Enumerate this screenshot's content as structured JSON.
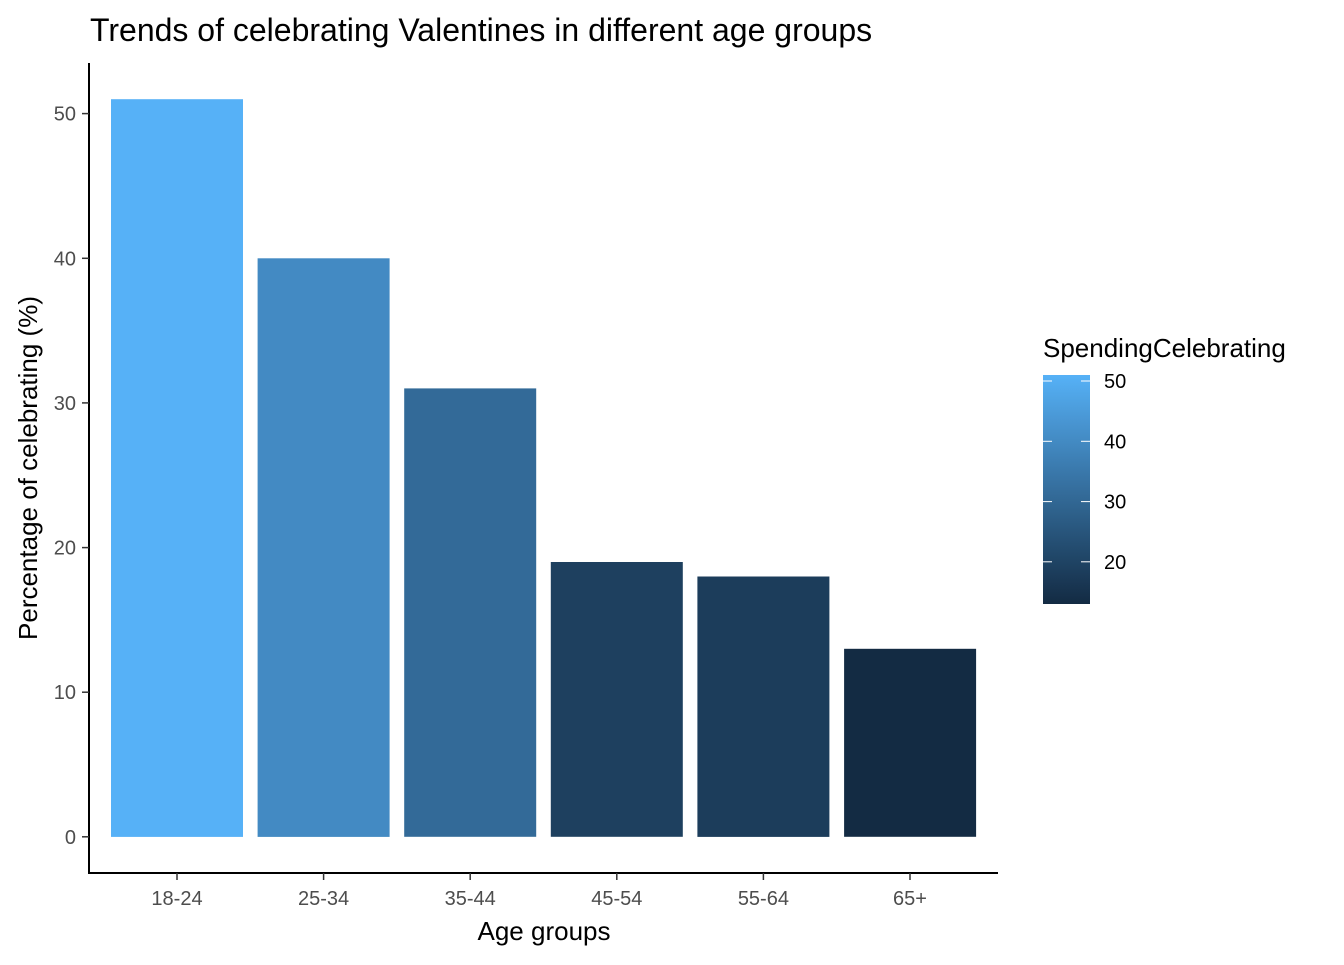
{
  "chart_data": {
    "type": "bar",
    "title": "Trends of celebrating Valentines in different age groups",
    "xlabel": "Age groups",
    "ylabel": "Percentage of celebrating (%)",
    "categories": [
      "18-24",
      "25-34",
      "35-44",
      "45-54",
      "55-64",
      "65+"
    ],
    "values": [
      51,
      40,
      31,
      19,
      18,
      13
    ],
    "fill_values": [
      51,
      40,
      31,
      19,
      18,
      13
    ],
    "ylim": [
      -2.5,
      53.5
    ],
    "yticks": [
      0,
      10,
      20,
      30,
      40,
      50
    ],
    "ytick_labels": [
      "0",
      "10",
      "20",
      "30",
      "40",
      "50"
    ],
    "grid": false,
    "legend": {
      "title": "SpendingCelebrating",
      "placement": "right",
      "type": "colorbar",
      "range": [
        13,
        51
      ],
      "ticks": [
        20,
        30,
        40,
        50
      ],
      "tick_labels": [
        "20",
        "30",
        "40",
        "50"
      ],
      "color_low": "#132B43",
      "color_high": "#56B1F7"
    }
  }
}
